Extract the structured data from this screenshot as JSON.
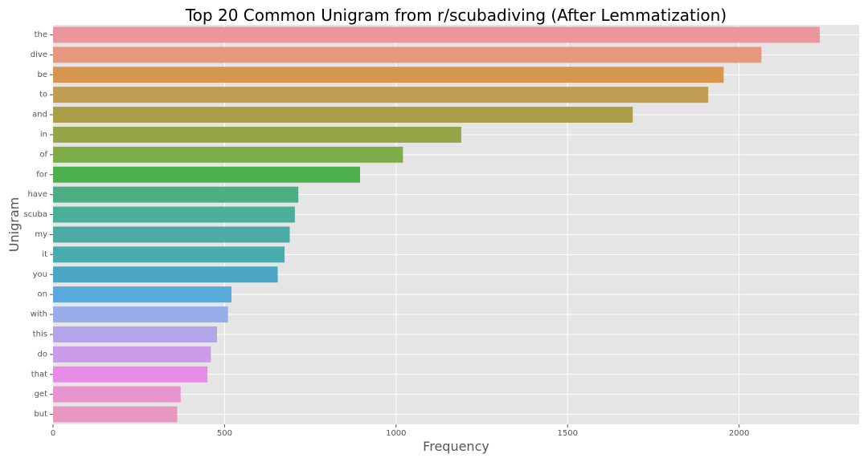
{
  "chart_data": {
    "type": "bar",
    "orientation": "horizontal",
    "title": "Top 20 Common Unigram from r/scubadiving (After Lemmatization)",
    "xlabel": "Frequency",
    "ylabel": "Unigram",
    "xlim": [
      0,
      2350
    ],
    "xticks": [
      0,
      500,
      1000,
      1500,
      2000
    ],
    "xtick_labels": [
      "0",
      "500",
      "1000",
      "1500",
      "2000"
    ],
    "grid": true,
    "background": "#e5e5e5",
    "categories": [
      "the",
      "dive",
      "be",
      "to",
      "and",
      "in",
      "of",
      "for",
      "have",
      "scuba",
      "my",
      "it",
      "you",
      "on",
      "with",
      "this",
      "do",
      "that",
      "get",
      "but"
    ],
    "values": [
      2235,
      2065,
      1955,
      1910,
      1690,
      1190,
      1020,
      895,
      715,
      705,
      690,
      675,
      655,
      520,
      510,
      478,
      460,
      450,
      372,
      362
    ],
    "colors": [
      "#ea969f",
      "#e8977f",
      "#d69650",
      "#c09d52",
      "#aa9f49",
      "#95a548",
      "#7dac48",
      "#4cb14d",
      "#4caf84",
      "#4caf9c",
      "#4aaca4",
      "#48abae",
      "#4aa8c6",
      "#57aadb",
      "#97aeea",
      "#b3a5ea",
      "#c99be8",
      "#e68be6",
      "#e695cf",
      "#e898c0"
    ]
  }
}
